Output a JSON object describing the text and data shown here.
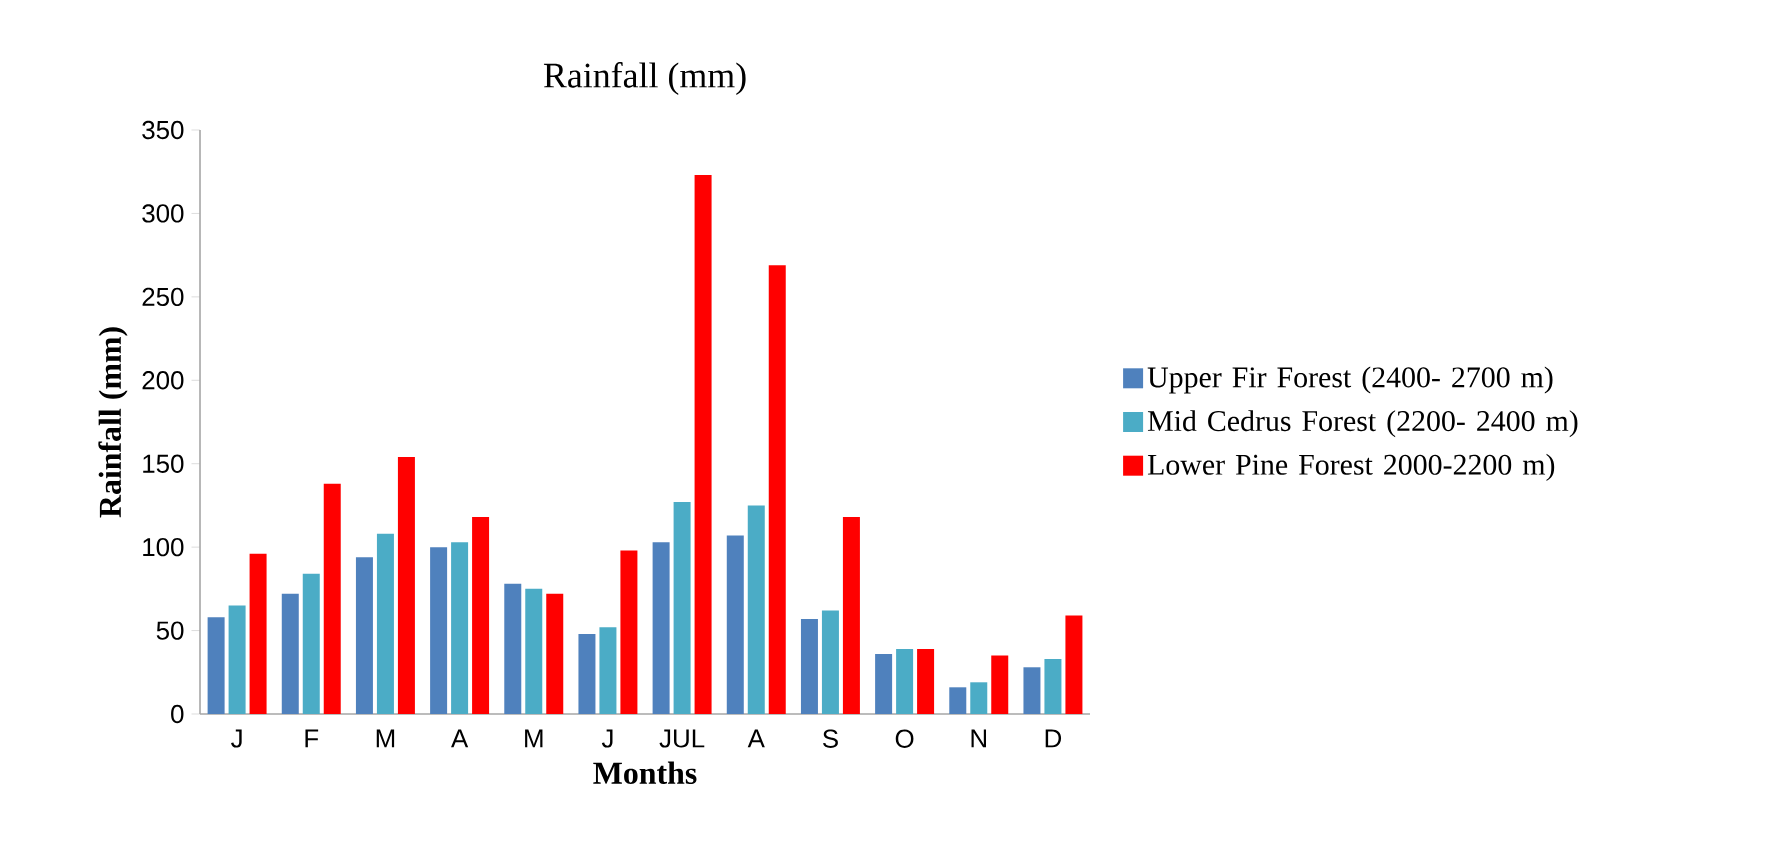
{
  "chart_data": {
    "type": "bar",
    "title": "Rainfall (mm)",
    "xlabel": "Months",
    "ylabel": "Rainfall (mm)",
    "categories": [
      "J",
      "F",
      "M",
      "A",
      "M",
      "J",
      "JUL",
      "A",
      "S",
      "O",
      "N",
      "D"
    ],
    "series": [
      {
        "name": "Upper Fir Forest (2400- 2700 m)",
        "color": "#4f81bd",
        "values": [
          58,
          72,
          94,
          100,
          78,
          48,
          103,
          107,
          57,
          36,
          16,
          28
        ]
      },
      {
        "name": "Mid Cedrus Forest (2200- 2400 m)",
        "color": "#4bacc6",
        "values": [
          65,
          84,
          108,
          103,
          75,
          52,
          127,
          125,
          62,
          39,
          19,
          33
        ]
      },
      {
        "name": "Lower Pine Forest 2000-2200 m)",
        "color": "#ff0000",
        "values": [
          96,
          138,
          154,
          118,
          72,
          98,
          323,
          269,
          118,
          39,
          35,
          59
        ]
      }
    ],
    "ylim": [
      0,
      350
    ],
    "yticks": [
      0,
      50,
      100,
      150,
      200,
      250,
      300,
      350
    ],
    "grid": false,
    "legend": "right"
  }
}
